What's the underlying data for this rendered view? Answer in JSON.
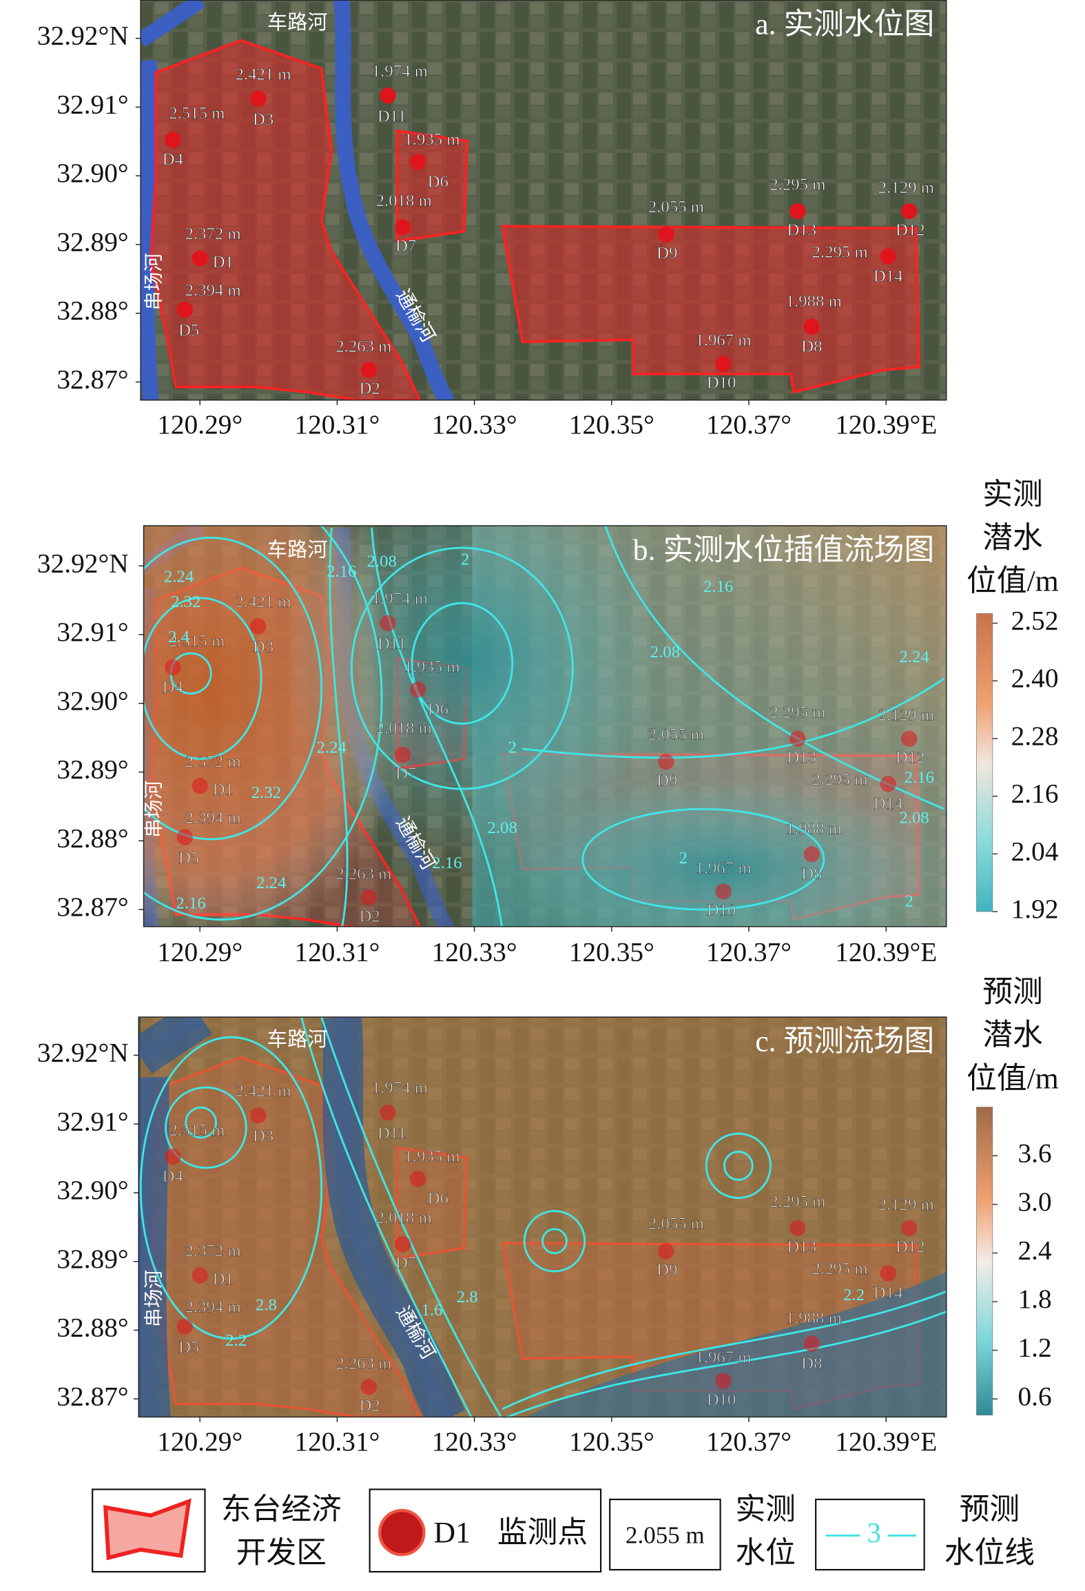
{
  "panels": [
    {
      "title": "a. 实测水位图"
    },
    {
      "title": "b. 实测水位插值流场图",
      "contour_labels": [
        2.24,
        2.32,
        2.4,
        2.16,
        2.08,
        2,
        2.16,
        2.08,
        2,
        2.16,
        2.08,
        2.24,
        2.32,
        2.24,
        2.16,
        2.24,
        2,
        2,
        2.08,
        2.16
      ]
    },
    {
      "title": "c. 预测流场图",
      "contour_labels": [
        2.8,
        2.2,
        1.6,
        2.8,
        2.2
      ]
    }
  ],
  "lat_ticks": [
    {
      "value": 32.92,
      "label": "32.92°N"
    },
    {
      "value": 32.91,
      "label": "32.91°"
    },
    {
      "value": 32.9,
      "label": "32.90°"
    },
    {
      "value": 32.89,
      "label": "32.89°"
    },
    {
      "value": 32.88,
      "label": "32.88°"
    },
    {
      "value": 32.87,
      "label": "32.87°"
    }
  ],
  "lon_ticks": [
    {
      "value": 120.29,
      "label": "120.29°"
    },
    {
      "value": 120.31,
      "label": "120.31°"
    },
    {
      "value": 120.33,
      "label": "120.33°"
    },
    {
      "value": 120.35,
      "label": "120.35°"
    },
    {
      "value": 120.37,
      "label": "120.37°"
    },
    {
      "value": 120.39,
      "label": "120.39°E"
    }
  ],
  "rivers": [
    "车路河",
    "串场河",
    "通榆河"
  ],
  "stations": [
    {
      "id": "D1",
      "level": "2.372 m"
    },
    {
      "id": "D2",
      "level": "2.263 m"
    },
    {
      "id": "D3",
      "level": "2.421 m"
    },
    {
      "id": "D4",
      "level": "2.515 m"
    },
    {
      "id": "D5",
      "level": "2.394 m"
    },
    {
      "id": "D6",
      "level": "1.935 m"
    },
    {
      "id": "D7",
      "level": "2.018 m"
    },
    {
      "id": "D8",
      "level": "1.988 m"
    },
    {
      "id": "D9",
      "level": "2.055 m"
    },
    {
      "id": "D10",
      "level": "1.967 m"
    },
    {
      "id": "D11",
      "level": "1.974 m"
    },
    {
      "id": "D12",
      "level": "2.129 m"
    },
    {
      "id": "D13",
      "level": "2.295 m"
    },
    {
      "id": "D14",
      "level": "2.295 m"
    }
  ],
  "colorbars": [
    {
      "title": [
        "实测",
        "潜水",
        "位值/m"
      ],
      "lim": [
        1.92,
        2.54
      ],
      "ticks": [
        2.52,
        {
          "value": 2.4,
          "label": "2.40"
        },
        2.28,
        2.16,
        2.04,
        1.92
      ]
    },
    {
      "title": [
        "预测",
        "潜水",
        "位值/m"
      ],
      "lim": [
        0.4,
        4.2
      ],
      "ticks": [
        3.6,
        {
          "value": 3,
          "label": "3.0"
        },
        2.4,
        1.8,
        1.2,
        0.6
      ]
    }
  ],
  "legend": {
    "zone": [
      "东台经济",
      "开发区"
    ],
    "point_id": "D1",
    "point": "监测点",
    "level_sample": "2.055 m",
    "level": [
      "实测",
      "水位"
    ],
    "line_sample": "3",
    "line": [
      "预测",
      "水位线"
    ]
  }
}
